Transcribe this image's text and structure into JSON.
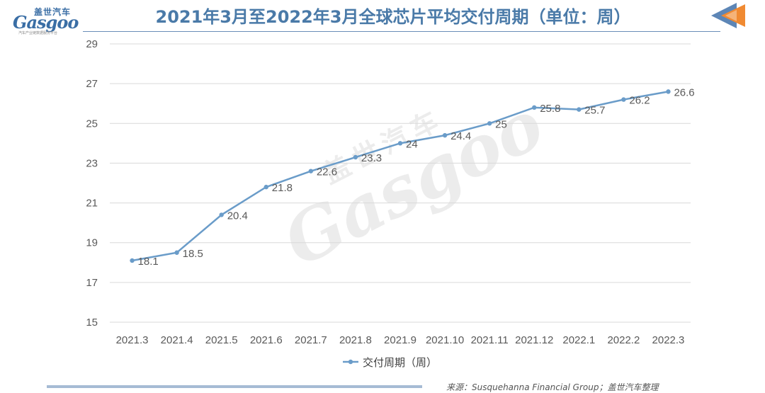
{
  "header": {
    "logo_cn": "盖世汽车",
    "logo_en": "Gasgoo",
    "logo_tagline": "汽车产业链数据服务平台",
    "title": "2021年3月至2022年3月全球芯片平均交付周期（单位：周）"
  },
  "watermark": {
    "cn": "盖世汽车",
    "en": "Gasgoo"
  },
  "source": "来源：Susquehanna Financial Group；盖世汽车整理",
  "colors": {
    "series": "#6a9cc9",
    "grid": "#d9d9d9",
    "title": "#4a7aa8",
    "text": "#595959"
  },
  "chart_data": {
    "type": "line",
    "title": "2021年3月至2022年3月全球芯片平均交付周期（单位：周）",
    "categories": [
      "2021.3",
      "2021.4",
      "2021.5",
      "2021.6",
      "2021.7",
      "2021.8",
      "2021.9",
      "2021.10",
      "2021.11",
      "2021.12",
      "2022.1",
      "2022.2",
      "2022.3"
    ],
    "series": [
      {
        "name": "交付周期（周）",
        "values": [
          18.1,
          18.5,
          20.4,
          21.8,
          22.6,
          23.3,
          24,
          24.4,
          25,
          25.8,
          25.7,
          26.2,
          26.6
        ],
        "labels": [
          "18.1",
          "18.5",
          "20.4",
          "21.8",
          "22.6",
          "23.3",
          "24",
          "24.4",
          "25",
          "25.8",
          "25.7",
          "26.2",
          "26.6"
        ]
      }
    ],
    "ylim": [
      15,
      29
    ],
    "yticks": [
      15,
      17,
      19,
      21,
      23,
      25,
      27,
      29
    ],
    "grid": true,
    "legend": "bottom"
  }
}
